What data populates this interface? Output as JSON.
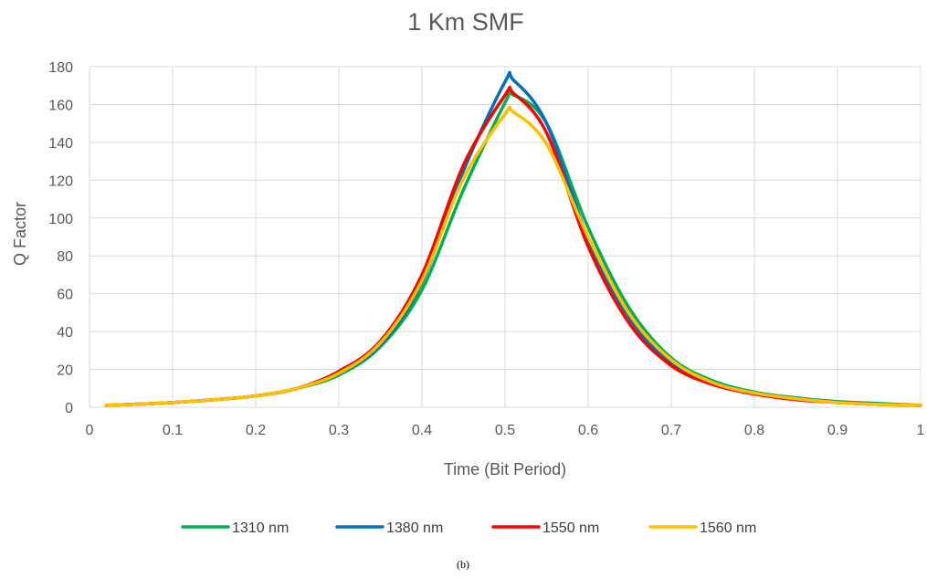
{
  "chart_data": {
    "type": "line",
    "title": "1 Km SMF",
    "xlabel": "Time (Bit Period)",
    "ylabel": "Q Factor",
    "xlim": [
      0,
      1
    ],
    "ylim": [
      0,
      180
    ],
    "x_ticks": [
      "0",
      "0.1",
      "0.2",
      "0.3",
      "0.4",
      "0.5",
      "0.6",
      "0.7",
      "0.8",
      "0.9",
      "1"
    ],
    "y_ticks": [
      "0",
      "20",
      "40",
      "60",
      "80",
      "100",
      "120",
      "140",
      "160",
      "180"
    ],
    "grid": true,
    "legend_position": "bottom",
    "x": [
      0.02,
      0.05,
      0.1,
      0.15,
      0.2,
      0.25,
      0.3,
      0.35,
      0.4,
      0.45,
      0.5,
      0.51,
      0.55,
      0.6,
      0.65,
      0.7,
      0.75,
      0.8,
      0.85,
      0.9,
      0.95,
      1.0
    ],
    "series": [
      {
        "name": "1310 nm",
        "color": "#00b050",
        "values": [
          1,
          1.5,
          2.5,
          4,
          6,
          10,
          17,
          32,
          62,
          115,
          161,
          165,
          150,
          95,
          52,
          26,
          14,
          8,
          5,
          3,
          2,
          1
        ]
      },
      {
        "name": "1380 nm",
        "color": "#0070c0",
        "values": [
          1,
          1.5,
          2.5,
          4,
          6,
          10,
          18,
          33,
          66,
          125,
          172,
          173,
          150,
          89,
          47,
          23,
          13,
          7.5,
          4.5,
          2.5,
          1.5,
          1
        ]
      },
      {
        "name": "1550 nm",
        "color": "#ff0000",
        "values": [
          1,
          1.5,
          2.5,
          4,
          6,
          10,
          19,
          35,
          70,
          128,
          165,
          166,
          145,
          85,
          44,
          22,
          12,
          7,
          4,
          2.5,
          1.5,
          1
        ]
      },
      {
        "name": "1560 nm",
        "color": "#ffc000",
        "values": [
          1,
          1.5,
          2.5,
          4,
          6,
          10,
          18,
          34,
          67,
          121,
          155,
          156,
          139,
          90,
          49,
          25,
          13,
          7.5,
          4.5,
          2.5,
          1.5,
          1
        ]
      }
    ]
  },
  "caption": "(b)"
}
